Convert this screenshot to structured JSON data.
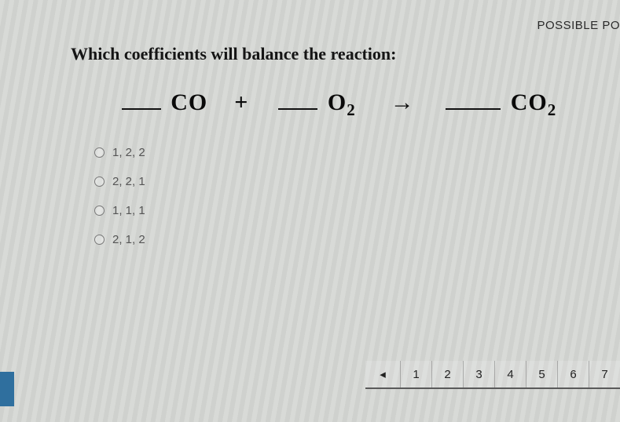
{
  "header": {
    "possible_points_label": "POSSIBLE PO"
  },
  "question": {
    "prompt": "Which coefficients will balance the reaction:",
    "equation": {
      "term1": "CO",
      "plus": "+",
      "term2_base": "O",
      "term2_sub": "2",
      "arrow": "→",
      "term3_base": "CO",
      "term3_sub": "2"
    }
  },
  "options": [
    {
      "label": "1, 2, 2"
    },
    {
      "label": "2, 2, 1"
    },
    {
      "label": "1, 1, 1"
    },
    {
      "label": "2, 1, 2"
    }
  ],
  "pager": {
    "prev_glyph": "◂",
    "pages": [
      "1",
      "2",
      "3",
      "4",
      "5",
      "6",
      "7"
    ]
  },
  "colors": {
    "text_primary": "#151515",
    "text_muted": "#555555",
    "accent_tab": "#2f6f9e",
    "stripe_light": "#d8dad7",
    "stripe_dark": "#cfd1ce"
  }
}
